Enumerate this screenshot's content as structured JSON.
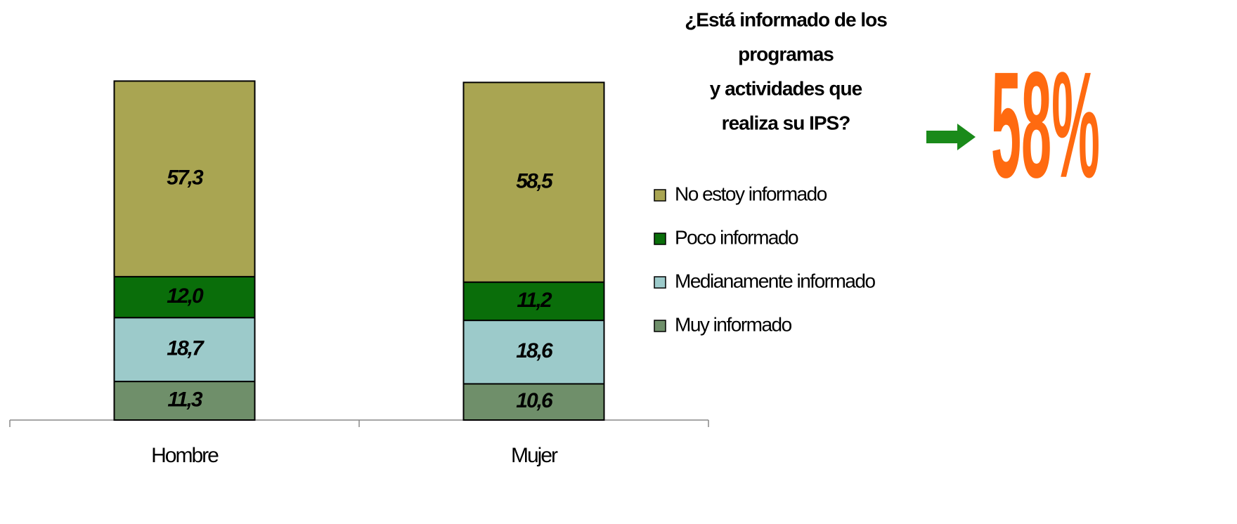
{
  "chart_data": {
    "type": "stacked_bar",
    "title": [
      "¿Está informado de los",
      "programas",
      "y actividades que",
      "realiza su IPS?"
    ],
    "annotation": "58%",
    "categories": [
      "Hombre",
      "Mujer"
    ],
    "ylim": [
      0,
      100
    ],
    "series": [
      {
        "name": "Muy informado",
        "color": "#6f8f6a",
        "values": [
          11.3,
          10.6
        ],
        "value_labels": [
          "11,3",
          "10,6"
        ]
      },
      {
        "name": "Medianamente  informado",
        "color": "#9ccaca",
        "values": [
          18.7,
          18.6
        ],
        "value_labels": [
          "18,7",
          "18,6"
        ]
      },
      {
        "name": "Poco informado",
        "color": "#0a6e0a",
        "values": [
          12.0,
          11.2
        ],
        "value_labels": [
          "12,0",
          "11,2"
        ]
      },
      {
        "name": "No estoy informado",
        "color": "#a9a552",
        "values": [
          57.3,
          58.5
        ],
        "value_labels": [
          "57,3",
          "58,5"
        ]
      }
    ]
  }
}
